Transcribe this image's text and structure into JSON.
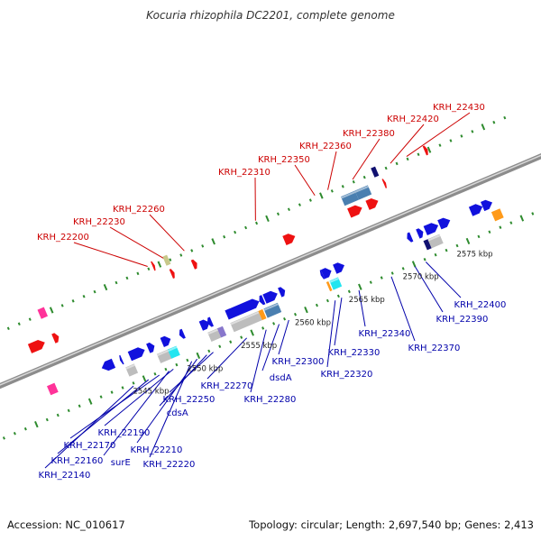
{
  "title": "Kocuria rhizophila DC2201, complete genome",
  "accession": "Accession: NC_010617",
  "topology": "Topology: circular; Length: 2,697,540 bp; Genes: 2,413",
  "colors": {
    "backbone": "#8c8c8c",
    "tick": "#2e8b2e",
    "label_top": "#cc0000",
    "label_bottom": "#0000aa",
    "blue": "#1111dd",
    "red": "#ee1111",
    "steel": "#4a7fb0",
    "gray": "#bdbdbd",
    "cyan": "#22e5f0",
    "orange": "#ff9a1a",
    "olive": "#c8c88a",
    "navy": "#101070",
    "pink": "#ff3399",
    "purple": "#8877cc"
  },
  "kbp_labels": [
    {
      "text": "2545 kbp",
      "kbp": 2545
    },
    {
      "text": "2550 kbp",
      "kbp": 2550
    },
    {
      "text": "2555 kbp",
      "kbp": 2555
    },
    {
      "text": "2560 kbp",
      "kbp": 2560
    },
    {
      "text": "2565 kbp",
      "kbp": 2565
    },
    {
      "text": "2570 kbp",
      "kbp": 2570
    },
    {
      "text": "2575 kbp",
      "kbp": 2575
    }
  ],
  "top_labels": [
    {
      "name": "KRH_22200",
      "kbp": 2549.0
    },
    {
      "name": "KRH_22230",
      "kbp": 2550.6
    },
    {
      "name": "KRH_22260",
      "kbp": 2552.4
    },
    {
      "name": "KRH_22310",
      "kbp": 2559.0
    },
    {
      "name": "KRH_22350",
      "kbp": 2564.5
    },
    {
      "name": "KRH_22360",
      "kbp": 2565.7
    },
    {
      "name": "KRH_22380",
      "kbp": 2568.0
    },
    {
      "name": "KRH_22420",
      "kbp": 2571.5
    },
    {
      "name": "KRH_22430",
      "kbp": 2573.0
    }
  ],
  "bottom_labels": [
    {
      "name": "KRH_22140",
      "kbp": 2543.9
    },
    {
      "name": "KRH_22160",
      "kbp": 2545.3
    },
    {
      "name": "KRH_22170",
      "kbp": 2546.3
    },
    {
      "name": "surE",
      "kbp": 2547.2
    },
    {
      "name": "KRH_22190",
      "kbp": 2547.6
    },
    {
      "name": "KRH_22220",
      "kbp": 2549.3
    },
    {
      "name": "KRH_22210",
      "kbp": 2549.8
    },
    {
      "name": "cdsA",
      "kbp": 2550.7
    },
    {
      "name": "KRH_22250",
      "kbp": 2551.3
    },
    {
      "name": "KRH_22270",
      "kbp": 2554.4
    },
    {
      "name": "KRH_22280",
      "kbp": 2556.2
    },
    {
      "name": "dsdA",
      "kbp": 2557.4
    },
    {
      "name": "KRH_22300",
      "kbp": 2558.3
    },
    {
      "name": "KRH_22320",
      "kbp": 2562.6
    },
    {
      "name": "KRH_22330",
      "kbp": 2563.2
    },
    {
      "name": "KRH_22340",
      "kbp": 2564.8
    },
    {
      "name": "KRH_22370",
      "kbp": 2567.8
    },
    {
      "name": "KRH_22390",
      "kbp": 2570.0
    },
    {
      "name": "KRH_22400",
      "kbp": 2571.0
    }
  ],
  "genes": [
    {
      "start": 2537.1,
      "end": 2537.8,
      "lane": -1,
      "strand": "+",
      "color": "pink"
    },
    {
      "start": 2538.9,
      "end": 2539.5,
      "lane": 3,
      "strand": "+",
      "color": "pink"
    },
    {
      "start": 2539.2,
      "end": 2539.7,
      "lane": 1,
      "strand": "+",
      "color": "red"
    },
    {
      "start": 2537.0,
      "end": 2538.4,
      "lane": 1,
      "strand": "+",
      "color": "red"
    },
    {
      "start": 2542.0,
      "end": 2543.1,
      "lane": -1,
      "strand": "-",
      "color": "blue"
    },
    {
      "start": 2543.9,
      "end": 2544.7,
      "lane": -2,
      "strand": "-",
      "color": "gray"
    },
    {
      "start": 2543.7,
      "end": 2543.9,
      "lane": -1,
      "strand": "-",
      "color": "blue"
    },
    {
      "start": 2544.6,
      "end": 2546.0,
      "lane": -1,
      "strand": "+",
      "color": "blue"
    },
    {
      "start": 2546.3,
      "end": 2546.9,
      "lane": -1,
      "strand": "+",
      "color": "blue"
    },
    {
      "start": 2546.8,
      "end": 2548.0,
      "lane": -2,
      "strand": "+",
      "color": "gray"
    },
    {
      "start": 2547.8,
      "end": 2548.6,
      "lane": -2,
      "strand": "+",
      "color": "cyan"
    },
    {
      "start": 2547.6,
      "end": 2548.4,
      "lane": -1,
      "strand": "+",
      "color": "blue"
    },
    {
      "start": 2549.2,
      "end": 2549.6,
      "lane": -1,
      "strand": "-",
      "color": "blue"
    },
    {
      "start": 2549.4,
      "end": 2549.6,
      "lane": 3,
      "strand": "+",
      "color": "red"
    },
    {
      "start": 2550.6,
      "end": 2550.9,
      "lane": 2,
      "strand": "+",
      "color": "red"
    },
    {
      "start": 2550.5,
      "end": 2550.9,
      "lane": 3,
      "strand": "+",
      "color": "olive"
    },
    {
      "start": 2551.2,
      "end": 2552.0,
      "lane": -1,
      "strand": "+",
      "color": "blue"
    },
    {
      "start": 2551.8,
      "end": 2552.2,
      "lane": -1,
      "strand": "-",
      "color": "blue"
    },
    {
      "start": 2551.5,
      "end": 2552.6,
      "lane": -2,
      "strand": "+",
      "color": "gray"
    },
    {
      "start": 2552.4,
      "end": 2552.9,
      "lane": -2,
      "strand": "+",
      "color": "purple"
    },
    {
      "start": 2552.6,
      "end": 2553.0,
      "lane": 2,
      "strand": "+",
      "color": "red"
    },
    {
      "start": 2553.6,
      "end": 2556.6,
      "lane": -1,
      "strand": "+",
      "color": "blue"
    },
    {
      "start": 2553.6,
      "end": 2556.2,
      "lane": -2,
      "strand": "+",
      "color": "gray"
    },
    {
      "start": 2556.2,
      "end": 2556.6,
      "lane": -2,
      "strand": "+",
      "color": "orange"
    },
    {
      "start": 2556.6,
      "end": 2557.0,
      "lane": -1,
      "strand": "-",
      "color": "blue"
    },
    {
      "start": 2557.1,
      "end": 2558.3,
      "lane": -1,
      "strand": "+",
      "color": "blue"
    },
    {
      "start": 2556.7,
      "end": 2558.0,
      "lane": -2,
      "strand": "+",
      "color": "steel"
    },
    {
      "start": 2558.5,
      "end": 2559.0,
      "lane": -1,
      "strand": "+",
      "color": "blue"
    },
    {
      "start": 2560.6,
      "end": 2561.6,
      "lane": 1,
      "strand": "+",
      "color": "red"
    },
    {
      "start": 2562.3,
      "end": 2562.5,
      "lane": -1,
      "strand": "-",
      "color": "blue"
    },
    {
      "start": 2562.5,
      "end": 2563.3,
      "lane": -1,
      "strand": "+",
      "color": "blue"
    },
    {
      "start": 2562.5,
      "end": 2562.7,
      "lane": -2,
      "strand": "+",
      "color": "orange"
    },
    {
      "start": 2562.8,
      "end": 2563.6,
      "lane": -2,
      "strand": "+",
      "color": "cyan"
    },
    {
      "start": 2563.6,
      "end": 2564.5,
      "lane": -1,
      "strand": "+",
      "color": "blue"
    },
    {
      "start": 2566.5,
      "end": 2567.8,
      "lane": 2,
      "strand": "+",
      "color": "steel"
    },
    {
      "start": 2566.6,
      "end": 2567.8,
      "lane": 1,
      "strand": "+",
      "color": "red"
    },
    {
      "start": 2567.8,
      "end": 2569.0,
      "lane": 2,
      "strand": "+",
      "color": "steel"
    },
    {
      "start": 2568.3,
      "end": 2569.3,
      "lane": 1,
      "strand": "+",
      "color": "red"
    },
    {
      "start": 2569.8,
      "end": 2570.2,
      "lane": 3,
      "strand": "+",
      "color": "navy"
    },
    {
      "start": 2570.3,
      "end": 2570.5,
      "lane": 2,
      "strand": "+",
      "color": "red"
    },
    {
      "start": 2570.3,
      "end": 2570.7,
      "lane": -1,
      "strand": "-",
      "color": "blue"
    },
    {
      "start": 2571.3,
      "end": 2571.8,
      "lane": -1,
      "strand": "+",
      "color": "blue"
    },
    {
      "start": 2571.5,
      "end": 2572.0,
      "lane": -2,
      "strand": "+",
      "color": "navy"
    },
    {
      "start": 2571.9,
      "end": 2573.0,
      "lane": -2,
      "strand": "+",
      "color": "gray"
    },
    {
      "start": 2572.0,
      "end": 2573.2,
      "lane": -1,
      "strand": "+",
      "color": "blue"
    },
    {
      "start": 2573.3,
      "end": 2574.3,
      "lane": -1,
      "strand": "+",
      "color": "blue"
    },
    {
      "start": 2574.6,
      "end": 2574.9,
      "lane": 3,
      "strand": "+",
      "color": "red"
    },
    {
      "start": 2576.2,
      "end": 2577.3,
      "lane": -1,
      "strand": "+",
      "color": "blue"
    },
    {
      "start": 2577.3,
      "end": 2578.2,
      "lane": -1,
      "strand": "+",
      "color": "blue"
    },
    {
      "start": 2577.8,
      "end": 2578.6,
      "lane": -2,
      "strand": "+",
      "color": "orange"
    }
  ]
}
